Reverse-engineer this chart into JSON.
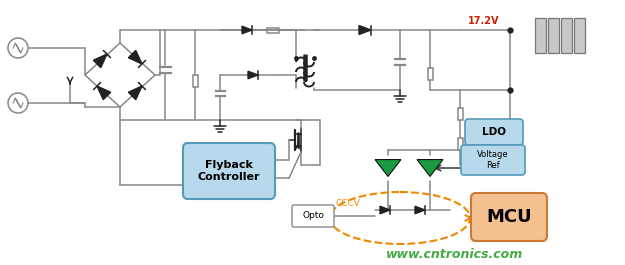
{
  "bg_color": "#ffffff",
  "line_color": "#888888",
  "dark_line": "#222222",
  "green_tri": "#1a9a40",
  "blue_fill": "#b8d8ec",
  "blue_edge": "#5599bb",
  "orange_fill": "#f5c090",
  "orange_edge": "#cc7733",
  "red_label": "#cc2200",
  "orange_dashed": "#ee8800",
  "green_water": "#44aa44",
  "watermark": "www.cntronics.com",
  "voltage_label": "17.2V",
  "flyback_label": "Flyback\nController",
  "mcu_label": "MCU",
  "ldo_label": "LDO",
  "vref_label": "Voltage\nRef",
  "opto_label": "Opto",
  "cccv_label": "CCCV"
}
